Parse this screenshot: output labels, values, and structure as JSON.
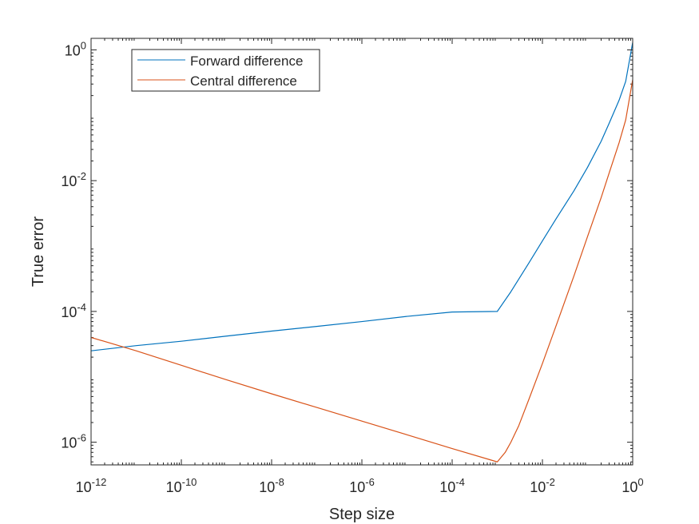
{
  "chart_data": {
    "type": "line",
    "xlabel": "Step size",
    "ylabel": "True error",
    "xscale": "log",
    "yscale": "log",
    "xlim": [
      1e-12,
      1
    ],
    "ylim": [
      4.5e-07,
      1.5
    ],
    "grid": false,
    "legend_position": "top-left",
    "x_ticks": [
      {
        "base": "10",
        "exp": "-12",
        "value": 1e-12
      },
      {
        "base": "10",
        "exp": "-10",
        "value": 1e-10
      },
      {
        "base": "10",
        "exp": "-8",
        "value": 1e-08
      },
      {
        "base": "10",
        "exp": "-6",
        "value": 1e-06
      },
      {
        "base": "10",
        "exp": "-4",
        "value": 0.0001
      },
      {
        "base": "10",
        "exp": "-2",
        "value": 0.01
      },
      {
        "base": "10",
        "exp": "0",
        "value": 1
      }
    ],
    "y_ticks": [
      {
        "base": "10",
        "exp": "-6",
        "value": 1e-06
      },
      {
        "base": "10",
        "exp": "-4",
        "value": 0.0001
      },
      {
        "base": "10",
        "exp": "-2",
        "value": 0.01
      },
      {
        "base": "10",
        "exp": "0",
        "value": 1
      }
    ],
    "series": [
      {
        "name": "Forward difference",
        "color": "#0072BD",
        "x": [
          1e-12,
          1e-11,
          1e-10,
          1e-09,
          1e-08,
          1e-07,
          1e-06,
          1e-05,
          0.0001,
          0.001,
          0.002,
          0.005,
          0.01,
          0.02,
          0.05,
          0.1,
          0.2,
          0.3,
          0.5,
          0.7,
          1
        ],
        "y": [
          2.5e-05,
          3e-05,
          3.5e-05,
          4.2e-05,
          5e-05,
          5.9e-05,
          7e-05,
          8.4e-05,
          9.8e-05,
          0.0001,
          0.0002,
          0.00055,
          0.0012,
          0.0026,
          0.007,
          0.016,
          0.04,
          0.075,
          0.17,
          0.33,
          1.3
        ]
      },
      {
        "name": "Central difference",
        "color": "#D95319",
        "x": [
          1e-12,
          1e-11,
          1e-10,
          1e-09,
          1e-08,
          1e-07,
          1e-06,
          1e-05,
          0.0001,
          0.001,
          0.0015,
          0.002,
          0.003,
          0.005,
          0.01,
          0.02,
          0.05,
          0.1,
          0.2,
          0.3,
          0.5,
          0.7,
          1
        ],
        "y": [
          4e-05,
          2.5e-05,
          1.5e-05,
          9e-06,
          5.5e-06,
          3.4e-06,
          2.1e-06,
          1.3e-06,
          8e-07,
          5e-07,
          7e-07,
          1e-06,
          1.8e-06,
          4.5e-06,
          1.6e-05,
          6e-05,
          0.00035,
          0.0014,
          0.0055,
          0.013,
          0.038,
          0.085,
          0.35
        ]
      }
    ]
  }
}
